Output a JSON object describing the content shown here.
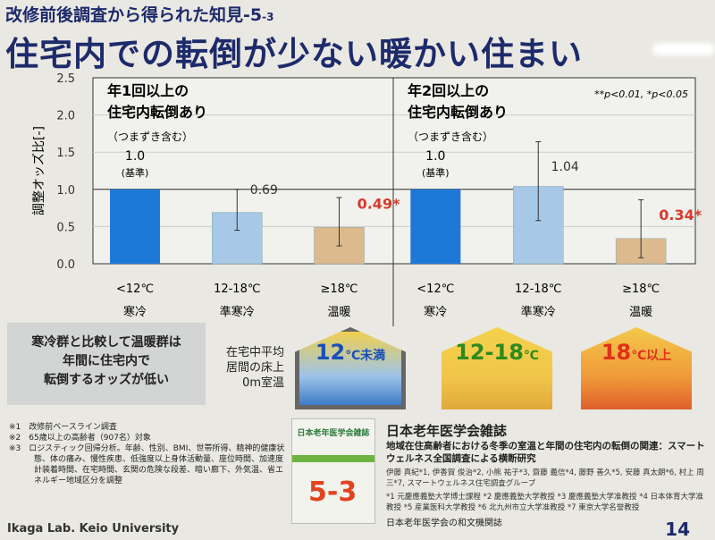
{
  "header": {
    "subtitle": "改修前後調査から得られた知見-5",
    "subtitle_sub": "-3",
    "title": "住宅内での転倒が少ない暖かい住まい"
  },
  "chart_data": [
    {
      "type": "bar",
      "title": "年1回以上の\n住宅内転倒あり",
      "title_note": "（つまずき含む）",
      "ylabel": "調整オッズ比[-]",
      "ylim": [
        0,
        2.5
      ],
      "yticks": [
        "0.0",
        "0.5",
        "1.0",
        "1.5",
        "2.0",
        "2.5"
      ],
      "grid": true,
      "categories": [
        "<12℃",
        "12-18℃",
        "≥18℃"
      ],
      "category_sublabels": [
        "寒冷",
        "準寒冷",
        "温暖"
      ],
      "values": [
        1.0,
        0.69,
        0.49
      ],
      "ci_low": [
        null,
        0.45,
        0.24
      ],
      "ci_high": [
        null,
        1.0,
        0.89
      ],
      "data_labels": [
        "1.0",
        "0.69",
        "0.49*"
      ],
      "reference_note": "(基準)",
      "reference_line": 1.0
    },
    {
      "type": "bar",
      "title": "年2回以上の\n住宅内転倒あり",
      "title_note": "（つまずき含む）",
      "ylim": [
        0,
        2.5
      ],
      "grid": true,
      "categories": [
        "<12℃",
        "12-18℃",
        "≥18℃"
      ],
      "category_sublabels": [
        "寒冷",
        "準寒冷",
        "温暖"
      ],
      "values": [
        1.0,
        1.04,
        0.34
      ],
      "ci_low": [
        null,
        0.58,
        0.08
      ],
      "ci_high": [
        null,
        1.64,
        0.86
      ],
      "data_labels": [
        "1.0",
        "1.04",
        "0.34*"
      ],
      "reference_note": "(基準)",
      "reference_line": 1.0,
      "significance_note": "**p<0.01, *p<0.05"
    }
  ],
  "colors": {
    "cold": "#1e78d8",
    "semi": "#a8c8e8",
    "warm": "#ddb98e",
    "sig": "#d83a2a",
    "title": "#1d2a6b"
  },
  "summary": "寒冷群と比較して温暖群は\n年間に住宅内で\n転倒するオッズが低い",
  "floor_label": "在宅中平均\n居間の床上\n0m室温",
  "houses": [
    {
      "label": "12",
      "unit": "℃未満",
      "color": "#1a4fb8"
    },
    {
      "label": "12-18",
      "unit": "℃",
      "color": "#2e8a1e"
    },
    {
      "label": "18",
      "unit": "℃以上",
      "color": "#e03018"
    }
  ],
  "footnotes": [
    {
      "mark": "※1",
      "text": "改修前ベースライン調査"
    },
    {
      "mark": "※2",
      "text": "65歳以上の高齢者（907名）対象"
    },
    {
      "mark": "※3",
      "text": "ロジスティック回帰分析。年齢、性別、BMI、世帯所得、精神的健康状態、体の痛み、慢性疾患、低強度以上身体活動量、座位時間、加速度計装着時間、在宅時間、玄関の危険な段差、暗い廊下、外気温、省エネルギー地域区分を調整"
    }
  ],
  "journal": {
    "cover_title": "日本老年医学会雑誌",
    "cover_number": "5-3",
    "name": "日本老年医学会雑誌",
    "paper_title": "地域在住高齢者における冬季の室温と年間の住宅内の転倒の関連：スマートウェルネス全国調査による横断研究",
    "authors": "伊藤 真紀*1, 伊香賀 俊治*2, 小熊 祐子*3, 齋藤 義信*4, 藤野 善久*5, 安藤 真太朗*6, 村上 周三*7, スマートウェルネス住宅調査グループ",
    "affiliations": "*1 元慶應義塾大学博士課程 *2 慶應義塾大学教授 *3 慶應義塾大学准教授 *4 日本体育大学准教授 *5 産業医科大学教授 *6 北九州市立大学准教授 *7 東京大学名誉教授",
    "footer": "日本老年医学会の和文機関誌"
  },
  "lab": "Ikaga Lab. Keio University",
  "page_number": "14"
}
